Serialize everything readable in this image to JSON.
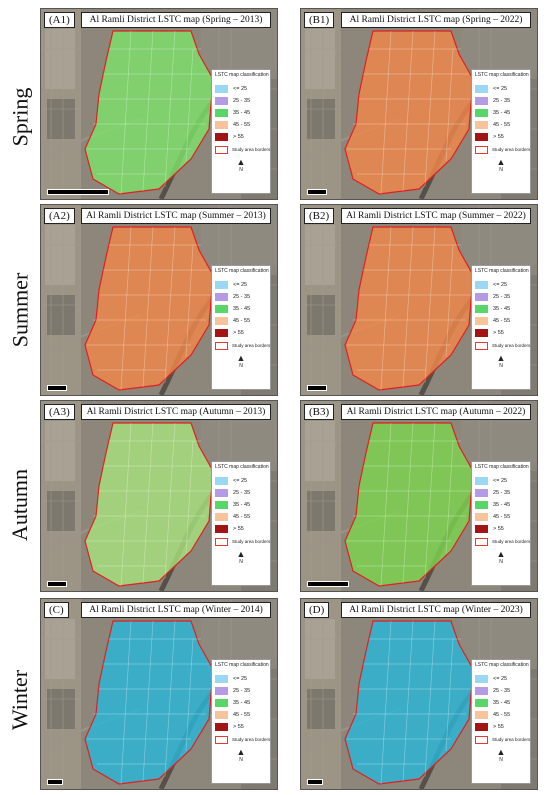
{
  "seasons": [
    "Spring",
    "Summer",
    "Autumn",
    "Winter"
  ],
  "legend": {
    "title": "LSTC map classification",
    "classes": [
      {
        "label": "<= 25",
        "color": "#9ad7f5"
      },
      {
        "label": "25 - 35",
        "color": "#b39be8"
      },
      {
        "label": "35 - 45",
        "color": "#58d668"
      },
      {
        "label": "45 - 55",
        "color": "#f7c39a"
      },
      {
        "label": "> 55",
        "color": "#a31414"
      }
    ],
    "border_label": "Study area borders",
    "north": "N"
  },
  "panels": [
    {
      "id": "(A1)",
      "title": "Al Ramli District LSTC map (Spring – 2013)",
      "fill": "#7ee06a"
    },
    {
      "id": "(B1)",
      "title": "Al Ramli District LSTC map (Spring – 2022)",
      "fill": "#f0874a"
    },
    {
      "id": "(A2)",
      "title": "Al Ramli District LSTC map (Summer – 2013)",
      "fill": "#f0874a"
    },
    {
      "id": "(B2)",
      "title": "Al Ramli District LSTC map (Summer – 2022)",
      "fill": "#f0874a"
    },
    {
      "id": "(A3)",
      "title": "Al Ramli District LSTC map (Autumn – 2013)",
      "fill": "#a8e07c"
    },
    {
      "id": "(B3)",
      "title": "Al Ramli District LSTC map (Autumn – 2022)",
      "fill": "#7ed44e"
    },
    {
      "id": "(C)",
      "title": "Al Ramli District LSTC map (Winter – 2014)",
      "fill": "#29b6d8"
    },
    {
      "id": "(D)",
      "title": "Al Ramli District LSTC map (Winter – 2023)",
      "fill": "#29b6d8"
    }
  ]
}
